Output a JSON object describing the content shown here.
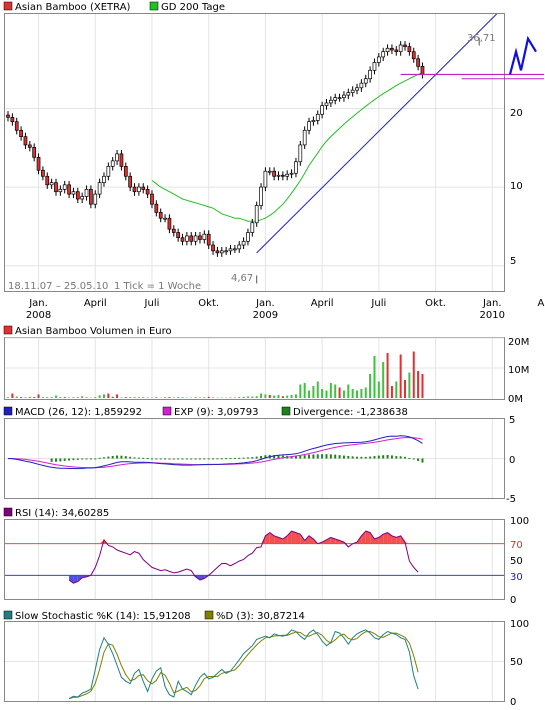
{
  "chart_data": [
    {
      "type": "candlestick",
      "legend": [
        {
          "name": "Asian Bamboo (XETRA)",
          "color": "#e03030"
        },
        {
          "name": "GD 200 Tage",
          "color": "#22c022"
        }
      ],
      "y_ticks": [
        "5",
        "10",
        "20"
      ],
      "ylim": [
        4,
        46
      ],
      "log_scale": true,
      "annotations": {
        "high": "36,71",
        "low": "4,67",
        "range": "18.11.07 – 25.05.10",
        "tick": "1 Tick = 1 Woche"
      },
      "x_ticks": [
        {
          "label": "Jan.",
          "year": "2008"
        },
        {
          "label": "April",
          "year": ""
        },
        {
          "label": "Juli",
          "year": ""
        },
        {
          "label": "Okt.",
          "year": ""
        },
        {
          "label": "Jan.",
          "year": "2009"
        },
        {
          "label": "April",
          "year": ""
        },
        {
          "label": "Juli",
          "year": ""
        },
        {
          "label": "Okt.",
          "year": ""
        },
        {
          "label": "Jan.",
          "year": "2010"
        },
        {
          "label": "April",
          "year": ""
        }
      ],
      "close_series": [
        18.5,
        17.8,
        16.5,
        15.6,
        14.5,
        14.2,
        13.0,
        11.6,
        11.0,
        10.2,
        10.4,
        9.6,
        9.8,
        10.2,
        9.4,
        9.6,
        9.0,
        9.2,
        9.8,
        8.6,
        9.4,
        10.4,
        11.0,
        12.0,
        12.6,
        13.4,
        12.0,
        11.0,
        10.0,
        9.6,
        10.0,
        9.8,
        9.4,
        8.6,
        8.0,
        7.6,
        7.6,
        6.9,
        6.7,
        6.4,
        6.2,
        6.5,
        6.2,
        6.5,
        6.3,
        6.6,
        6.0,
        5.7,
        5.6,
        5.7,
        5.7,
        5.8,
        5.8,
        6.0,
        6.2,
        6.7,
        7.3,
        8.5,
        10.0,
        11.5,
        11.5,
        11.0,
        11.1,
        11.0,
        11.2,
        11.3,
        12.5,
        14.5,
        16.5,
        17.8,
        18.0,
        19.0,
        20.5,
        21.0,
        21.5,
        22.0,
        22.0,
        22.5,
        23.0,
        23.5,
        24.0,
        25.0,
        26.0,
        28.0,
        30.0,
        31.5,
        33.0,
        34.0,
        33.5,
        33.0,
        35.0,
        34.5,
        33.0,
        31.0,
        29.0,
        27.0
      ],
      "ma200_series": [
        null,
        null,
        null,
        null,
        null,
        null,
        null,
        null,
        null,
        null,
        null,
        null,
        null,
        null,
        null,
        null,
        null,
        null,
        null,
        null,
        null,
        null,
        null,
        null,
        null,
        null,
        null,
        null,
        null,
        null,
        null,
        null,
        null,
        10.6,
        10.3,
        10.0,
        9.8,
        9.6,
        9.4,
        9.2,
        9.0,
        8.9,
        8.8,
        8.7,
        8.6,
        8.5,
        8.4,
        8.3,
        8.1,
        7.9,
        7.8,
        7.7,
        7.6,
        7.6,
        7.5,
        7.4,
        7.4,
        7.4,
        7.5,
        7.6,
        7.8,
        8.0,
        8.3,
        8.6,
        9.0,
        9.5,
        10.0,
        10.6,
        11.3,
        12.1,
        12.8,
        13.5,
        14.3,
        15.0,
        15.6,
        16.2,
        16.8,
        17.4,
        18.0,
        18.6,
        19.2,
        19.8,
        20.4,
        21.0,
        21.6,
        22.2,
        22.8,
        23.3,
        23.9,
        24.5,
        25.0,
        25.5,
        26.0,
        26.5,
        27.0,
        27.4
      ],
      "trendline": {
        "from": [
          57,
          5.6
        ],
        "to": [
          112,
          46
        ]
      },
      "support_levels": [
        27,
        26
      ]
    },
    {
      "type": "bar",
      "legend": [
        {
          "name": "Asian Bamboo Volumen in Euro",
          "color": "#e03030"
        }
      ],
      "y_ticks": [
        "0M",
        "10M",
        "20M"
      ],
      "ylim": [
        0,
        20
      ],
      "values": [
        0.2,
        1.5,
        0.5,
        0.3,
        0.2,
        0.4,
        0.3,
        1.2,
        0.3,
        0.2,
        0.2,
        0.8,
        0.2,
        0.3,
        0.2,
        0.2,
        0.2,
        0.6,
        0.2,
        0.1,
        0.3,
        0.9,
        1.2,
        1.5,
        0.4,
        1.2,
        0.2,
        0.3,
        0.2,
        0.3,
        0.2,
        0.2,
        0.2,
        0.1,
        0.2,
        0.1,
        0.2,
        0.3,
        0.2,
        0.2,
        0.2,
        0.1,
        0.1,
        0.2,
        0.2,
        0.2,
        0.4,
        0.2,
        0.1,
        0.1,
        0.1,
        0.2,
        0.2,
        0.3,
        0.4,
        0.5,
        0.5,
        0.6,
        1.5,
        1.2,
        1.0,
        0.8,
        1.0,
        0.6,
        0.8,
        1.0,
        1.2,
        4.5,
        5.0,
        2.5,
        4.0,
        5.5,
        3.0,
        2.5,
        5.0,
        4.5,
        3.5,
        2.5,
        4.5,
        3.0,
        2.5,
        3.0,
        3.5,
        8.0,
        14.0,
        5.5,
        12.0,
        15.0,
        4.0,
        5.5,
        14.5,
        6.0,
        8.5,
        15.5,
        9.0,
        8.0
      ],
      "colors": [
        "r",
        "r",
        "g",
        "r",
        "r",
        "g",
        "r",
        "r",
        "g",
        "r",
        "r",
        "g",
        "r",
        "r",
        "g",
        "r",
        "r",
        "g",
        "r",
        "r",
        "g",
        "g",
        "g",
        "r",
        "r",
        "r",
        "g",
        "r",
        "r",
        "g",
        "r",
        "r",
        "g",
        "r",
        "r",
        "g",
        "r",
        "r",
        "g",
        "r",
        "r",
        "g",
        "r",
        "r",
        "g",
        "r",
        "r",
        "g",
        "r",
        "r",
        "g",
        "g",
        "g",
        "g",
        "g",
        "g",
        "g",
        "g",
        "g",
        "g",
        "r",
        "g",
        "g",
        "r",
        "g",
        "g",
        "g",
        "g",
        "g",
        "g",
        "g",
        "g",
        "g",
        "g",
        "g",
        "g",
        "r",
        "g",
        "g",
        "g",
        "g",
        "g",
        "g",
        "g",
        "g",
        "g",
        "g",
        "r",
        "r",
        "g",
        "r",
        "r",
        "g",
        "r",
        "r",
        "r"
      ]
    },
    {
      "type": "line",
      "legend": [
        {
          "name": "MACD (26, 12): 1,859292",
          "color": "#2020c0"
        },
        {
          "name": "EXP (9): 3,09793",
          "color": "#d020d0"
        },
        {
          "name": "Divergence: -1,238638",
          "color": "#208020"
        }
      ],
      "y_ticks": [
        "5",
        "0",
        "-5"
      ],
      "ylim": [
        -5,
        5
      ]
    },
    {
      "type": "area",
      "legend": [
        {
          "name": "RSI (14): 34,60285",
          "color": "#800080"
        }
      ],
      "y_ticks": [
        "100",
        "70",
        "50",
        "30",
        "0"
      ],
      "ylim": [
        0,
        100
      ],
      "levels": [
        70,
        30
      ],
      "values": [
        null,
        null,
        null,
        null,
        null,
        null,
        null,
        null,
        null,
        null,
        null,
        null,
        null,
        null,
        24,
        20,
        22,
        27,
        28,
        30,
        40,
        55,
        75,
        68,
        66,
        62,
        60,
        58,
        56,
        60,
        58,
        50,
        45,
        40,
        38,
        36,
        37,
        35,
        33,
        34,
        36,
        38,
        36,
        28,
        24,
        26,
        30,
        35,
        40,
        45,
        45,
        42,
        45,
        48,
        50,
        55,
        58,
        65,
        66,
        80,
        84,
        80,
        78,
        76,
        80,
        86,
        84,
        82,
        74,
        80,
        76,
        70,
        72,
        75,
        78,
        76,
        74,
        72,
        66,
        70,
        72,
        80,
        86,
        84,
        76,
        78,
        82,
        84,
        80,
        78,
        80,
        72,
        48,
        40,
        34
      ]
    },
    {
      "type": "line",
      "legend": [
        {
          "name": "Slow Stochastic %K (14): 15,91208",
          "color": "#208080"
        },
        {
          "name": "%D (3): 30,87214",
          "color": "#808000"
        }
      ],
      "y_ticks": [
        "100",
        "50",
        "0"
      ],
      "ylim": [
        0,
        100
      ],
      "values": [
        null,
        null,
        null,
        null,
        null,
        null,
        null,
        null,
        null,
        null,
        null,
        null,
        null,
        null,
        3,
        6,
        5,
        10,
        12,
        15,
        40,
        65,
        80,
        72,
        60,
        45,
        30,
        25,
        22,
        35,
        40,
        25,
        12,
        28,
        38,
        42,
        18,
        8,
        5,
        25,
        15,
        12,
        8,
        20,
        30,
        35,
        28,
        30,
        35,
        40,
        35,
        38,
        45,
        52,
        60,
        65,
        70,
        78,
        80,
        82,
        80,
        85,
        83,
        82,
        84,
        90,
        88,
        82,
        78,
        86,
        90,
        84,
        76,
        70,
        74,
        88,
        86,
        80,
        72,
        80,
        85,
        88,
        90,
        86,
        80,
        78,
        84,
        88,
        86,
        84,
        80,
        78,
        62,
        32,
        15
      ]
    }
  ]
}
